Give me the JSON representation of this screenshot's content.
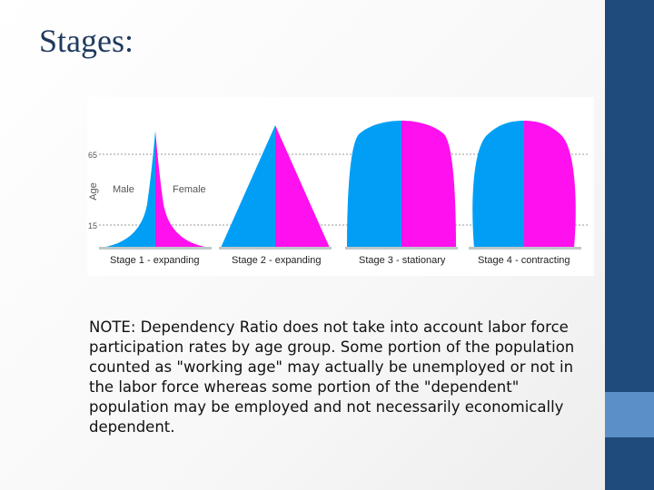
{
  "slide": {
    "title": "Stages:",
    "note": "NOTE: Dependency Ratio does not take into account labor force participation rates by age group. Some portion of the population counted as \"working age\" may actually be unemployed or not in the labor force whereas some portion of the \"dependent\" population may be employed and not necessarily economically dependent."
  },
  "figure": {
    "y_axis_label": "Age",
    "tick_labels": [
      "65",
      "15"
    ],
    "sex_labels": {
      "male": "Male",
      "female": "Female"
    },
    "colors": {
      "male": "#009ff5",
      "female": "#ff10ee",
      "base": "#bfc7c9",
      "gridline": "#9a9a9a"
    },
    "stages": [
      {
        "label": "Stage 1 - expanding"
      },
      {
        "label": "Stage 2 - expanding"
      },
      {
        "label": "Stage 3 - stationary"
      },
      {
        "label": "Stage 4 - contracting"
      }
    ]
  }
}
